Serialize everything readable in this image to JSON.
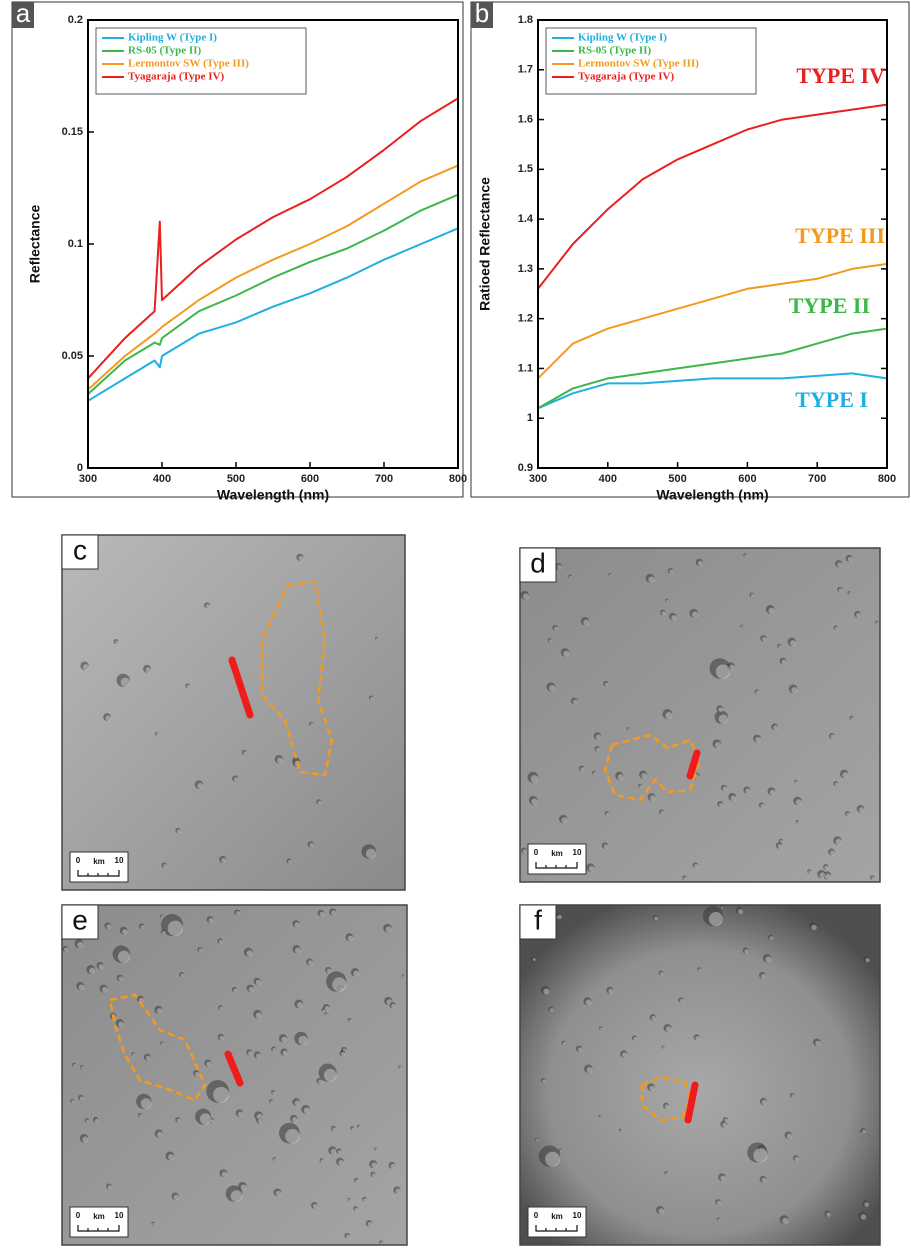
{
  "chart_data": [
    {
      "type": "line",
      "label": "a",
      "x_label": "Wavelength (nm)",
      "y_label": "Reflectance",
      "x": [
        300,
        350,
        390,
        397,
        400,
        450,
        500,
        550,
        600,
        650,
        700,
        750,
        800
      ],
      "xlim": [
        300,
        800
      ],
      "xticks": [
        300,
        400,
        500,
        600,
        700,
        800
      ],
      "ylim": [
        0,
        0.2
      ],
      "yticks": [
        0,
        0.05,
        0.1,
        0.15,
        0.2
      ],
      "legend": "upper-left",
      "series": [
        {
          "name": "Kipling W (Type I)",
          "color": "#1fb0e0",
          "values": [
            0.03,
            0.04,
            0.048,
            0.045,
            0.05,
            0.06,
            0.065,
            0.072,
            0.078,
            0.085,
            0.093,
            0.1,
            0.107
          ]
        },
        {
          "name": "RS-05 (Type II)",
          "color": "#3cb84a",
          "values": [
            0.033,
            0.048,
            0.056,
            0.055,
            0.058,
            0.07,
            0.077,
            0.085,
            0.092,
            0.098,
            0.106,
            0.115,
            0.122
          ]
        },
        {
          "name": "Lermontov SW (Type III)",
          "color": "#f39a1e",
          "values": [
            0.035,
            0.05,
            0.06,
            0.062,
            0.063,
            0.075,
            0.085,
            0.093,
            0.1,
            0.108,
            0.118,
            0.128,
            0.135
          ]
        },
        {
          "name": "Tyagaraja (Type IV)",
          "color": "#e8201f",
          "values": [
            0.04,
            0.058,
            0.07,
            0.11,
            0.075,
            0.09,
            0.102,
            0.112,
            0.12,
            0.13,
            0.142,
            0.155,
            0.165
          ]
        }
      ]
    },
    {
      "type": "line",
      "label": "b",
      "x_label": "Wavelength (nm)",
      "y_label": "Ratioed Reflectance",
      "x": [
        300,
        350,
        400,
        450,
        500,
        550,
        600,
        650,
        700,
        750,
        800
      ],
      "xlim": [
        300,
        800
      ],
      "xticks": [
        300,
        400,
        500,
        600,
        700,
        800
      ],
      "ylim": [
        0.9,
        1.8
      ],
      "yticks": [
        0.9,
        1,
        1.1,
        1.2,
        1.3,
        1.4,
        1.5,
        1.6,
        1.7,
        1.8
      ],
      "legend": "upper-left",
      "series": [
        {
          "name": "Kipling W (Type I)",
          "color": "#1fb0e0",
          "values": [
            1.02,
            1.05,
            1.07,
            1.07,
            1.075,
            1.08,
            1.08,
            1.08,
            1.085,
            1.09,
            1.08
          ]
        },
        {
          "name": "RS-05 (Type II)",
          "color": "#3cb84a",
          "values": [
            1.02,
            1.06,
            1.08,
            1.09,
            1.1,
            1.11,
            1.12,
            1.13,
            1.15,
            1.17,
            1.18
          ]
        },
        {
          "name": "Lermontov SW (Type III)",
          "color": "#f39a1e",
          "values": [
            1.08,
            1.15,
            1.18,
            1.2,
            1.22,
            1.24,
            1.26,
            1.27,
            1.28,
            1.3,
            1.31
          ]
        },
        {
          "name": "Tyagaraja (Type IV)",
          "color": "#e8201f",
          "values": [
            1.26,
            1.35,
            1.42,
            1.48,
            1.52,
            1.55,
            1.58,
            1.6,
            1.61,
            1.62,
            1.63
          ]
        }
      ],
      "annotations": [
        {
          "text": "TYPE IV",
          "color": "#e8201f"
        },
        {
          "text": "TYPE III",
          "color": "#f39a1e"
        },
        {
          "text": "TYPE II",
          "color": "#3cb84a"
        },
        {
          "text": "TYPE I",
          "color": "#1fb0e0"
        }
      ]
    }
  ],
  "panels": [
    {
      "label": "c",
      "scale": [
        "0",
        "km",
        "10"
      ]
    },
    {
      "label": "d",
      "scale": [
        "0",
        "km",
        "10"
      ]
    },
    {
      "label": "e",
      "scale": [
        "0",
        "km",
        "10"
      ]
    },
    {
      "label": "f",
      "scale": [
        "0",
        "km",
        "10"
      ]
    }
  ]
}
